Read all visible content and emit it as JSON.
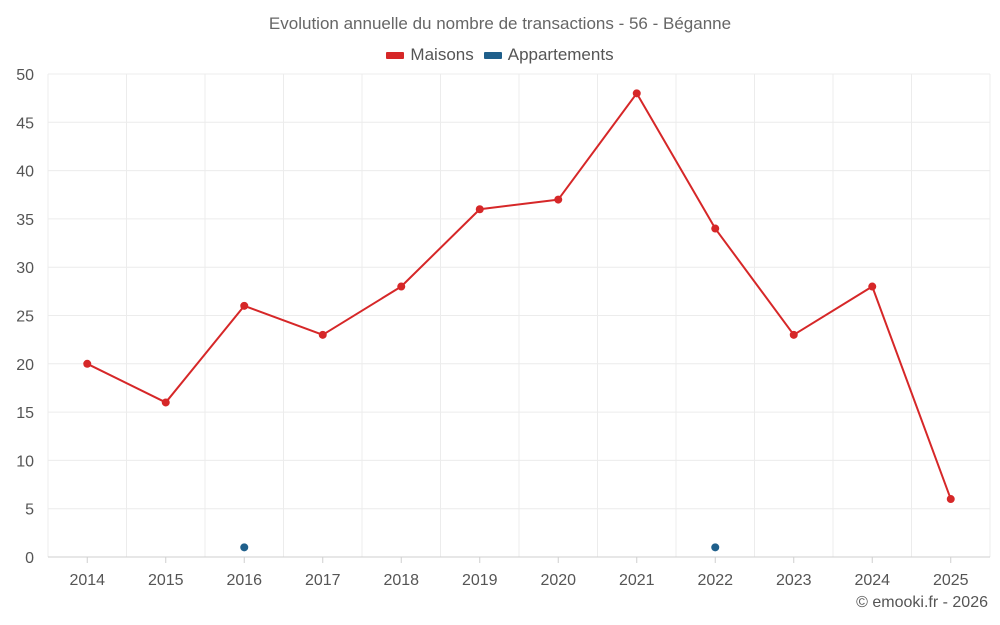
{
  "chart_data": {
    "type": "line",
    "title": "Evolution annuelle du nombre de transactions - 56 - Béganne",
    "categories": [
      "2014",
      "2015",
      "2016",
      "2017",
      "2018",
      "2019",
      "2020",
      "2021",
      "2022",
      "2023",
      "2024",
      "2025"
    ],
    "series": [
      {
        "name": "Maisons",
        "color": "#d62728",
        "values": [
          20,
          16,
          26,
          23,
          28,
          36,
          37,
          48,
          34,
          23,
          28,
          6
        ]
      },
      {
        "name": "Appartements",
        "color": "#1f5f8b",
        "values": [
          null,
          null,
          1,
          null,
          null,
          null,
          null,
          null,
          1,
          null,
          null,
          null
        ]
      }
    ],
    "ylim": [
      0,
      50
    ],
    "yticks": [
      0,
      5,
      10,
      15,
      20,
      25,
      30,
      35,
      40,
      45,
      50
    ],
    "xlabel": "",
    "ylabel": "",
    "grid": true,
    "legend_position": "top-center"
  },
  "credit": "© emooki.fr - 2026"
}
